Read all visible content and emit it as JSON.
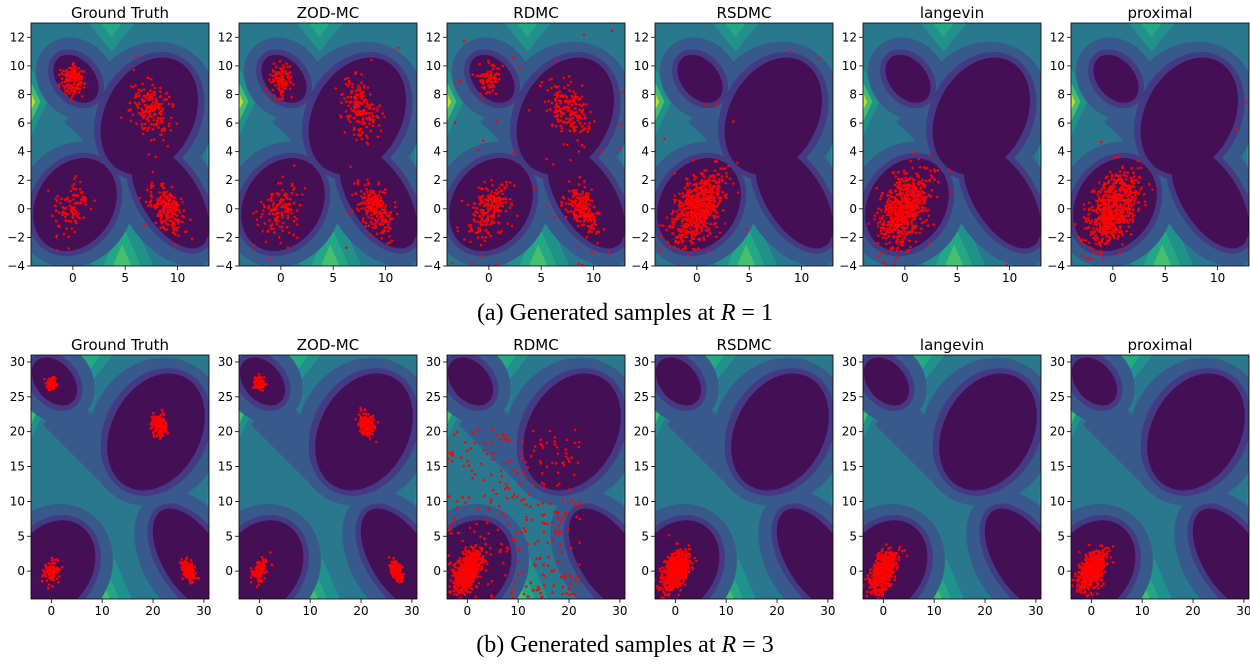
{
  "captions": {
    "a": {
      "prefix": "(a) Generated samples at ",
      "var": "R",
      "eq": " = ",
      "val": "1"
    },
    "b": {
      "prefix": "(b) Generated samples at ",
      "var": "R",
      "eq": " = ",
      "val": "3"
    }
  },
  "colors": {
    "sample": "#ff0000",
    "contour_levels": [
      "#440f54",
      "#433a83",
      "#38598c",
      "#2a788e",
      "#21918c",
      "#22a884",
      "#44bf70",
      "#7ad151",
      "#bddf26"
    ]
  },
  "methods": [
    "Ground Truth",
    "ZOD-MC",
    "RDMC",
    "RSDMC",
    "langevin",
    "proximal"
  ],
  "chart_data": [
    {
      "type": "scatter",
      "row": "a",
      "R": 1,
      "xlim": [
        -4,
        13
      ],
      "ylim": [
        -4,
        13
      ],
      "xticks": [
        "0",
        "5",
        "10"
      ],
      "yticks": [
        "−4",
        "−2",
        "0",
        "2",
        "4",
        "6",
        "8",
        "10",
        "12"
      ],
      "background": "filled contour of target density (4 modes)",
      "modes": [
        [
          0,
          9
        ],
        [
          7.5,
          7
        ],
        [
          0,
          0
        ],
        [
          9,
          0
        ]
      ],
      "panels": [
        {
          "title": "Ground Truth",
          "clusters": [
            {
              "c": [
                0,
                9
              ],
              "w": 0.22
            },
            {
              "c": [
                7.5,
                7
              ],
              "w": 0.28
            },
            {
              "c": [
                0,
                0
              ],
              "w": 0.15
            },
            {
              "c": [
                9,
                0
              ],
              "w": 0.35
            }
          ],
          "outliers": 0
        },
        {
          "title": "ZOD-MC",
          "clusters": [
            {
              "c": [
                0,
                9
              ],
              "w": 0.18
            },
            {
              "c": [
                7.5,
                7
              ],
              "w": 0.27
            },
            {
              "c": [
                0,
                0
              ],
              "w": 0.2
            },
            {
              "c": [
                9,
                0
              ],
              "w": 0.35
            }
          ],
          "outliers": 6
        },
        {
          "title": "RDMC",
          "clusters": [
            {
              "c": [
                0,
                9
              ],
              "w": 0.12
            },
            {
              "c": [
                7.5,
                7
              ],
              "w": 0.28
            },
            {
              "c": [
                0,
                0
              ],
              "w": 0.3
            },
            {
              "c": [
                9,
                0
              ],
              "w": 0.3
            }
          ],
          "outliers": 40
        },
        {
          "title": "RSDMC",
          "clusters": [
            {
              "c": [
                0,
                0
              ],
              "w": 1.0
            }
          ],
          "outliers": 8
        },
        {
          "title": "langevin",
          "clusters": [
            {
              "c": [
                0,
                0
              ],
              "w": 1.0
            }
          ],
          "outliers": 3
        },
        {
          "title": "proximal",
          "clusters": [
            {
              "c": [
                0,
                0
              ],
              "w": 1.0
            }
          ],
          "outliers": 3
        }
      ]
    },
    {
      "type": "scatter",
      "row": "b",
      "R": 3,
      "xlim": [
        -4,
        31
      ],
      "ylim": [
        -4,
        31
      ],
      "xticks": [
        "0",
        "10",
        "20",
        "30"
      ],
      "yticks": [
        "0",
        "5",
        "10",
        "15",
        "20",
        "25",
        "30"
      ],
      "background": "filled contour of target density (4 modes)",
      "modes": [
        [
          0,
          27
        ],
        [
          21,
          21
        ],
        [
          0,
          0
        ],
        [
          27,
          0
        ]
      ],
      "panels": [
        {
          "title": "Ground Truth",
          "clusters": [
            {
              "c": [
                0,
                27
              ],
              "w": 0.22
            },
            {
              "c": [
                21,
                21
              ],
              "w": 0.28
            },
            {
              "c": [
                0,
                0
              ],
              "w": 0.15
            },
            {
              "c": [
                27,
                0
              ],
              "w": 0.35
            }
          ],
          "outliers": 0
        },
        {
          "title": "ZOD-MC",
          "clusters": [
            {
              "c": [
                0,
                27
              ],
              "w": 0.2
            },
            {
              "c": [
                21,
                21
              ],
              "w": 0.3
            },
            {
              "c": [
                0,
                0
              ],
              "w": 0.2
            },
            {
              "c": [
                27,
                0
              ],
              "w": 0.3
            }
          ],
          "outliers": 0
        },
        {
          "title": "RDMC",
          "clusters": [
            {
              "c": [
                0,
                0
              ],
              "w": 1.0
            }
          ],
          "outliers": 300
        },
        {
          "title": "RSDMC",
          "clusters": [
            {
              "c": [
                0,
                0
              ],
              "w": 1.0
            }
          ],
          "outliers": 0
        },
        {
          "title": "langevin",
          "clusters": [
            {
              "c": [
                0,
                0
              ],
              "w": 1.0
            }
          ],
          "outliers": 0
        },
        {
          "title": "proximal",
          "clusters": [
            {
              "c": [
                0,
                0
              ],
              "w": 1.0
            }
          ],
          "outliers": 0
        }
      ]
    }
  ]
}
